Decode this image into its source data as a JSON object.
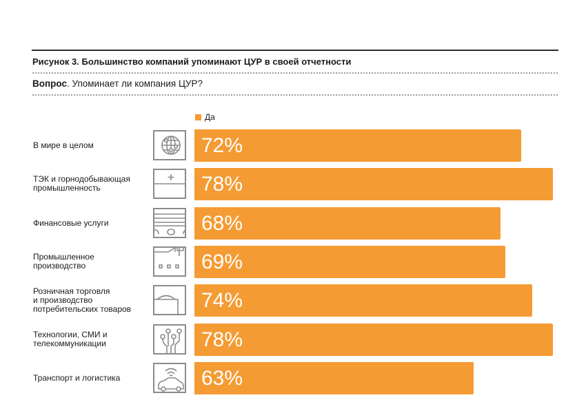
{
  "figure": {
    "title": "Рисунок 3. Большинство компаний упоминают ЦУР в своей отчетности",
    "question_bold": "Вопрос",
    "question_text": ". Упоминает ли компания ЦУР?"
  },
  "chart_data": {
    "type": "bar",
    "orientation": "horizontal",
    "title": "Рисунок 3. Большинство компаний упоминают ЦУР в своей отчетности",
    "xlabel": "",
    "ylabel": "",
    "legend": [
      {
        "name": "Да",
        "color": "#f59b33"
      }
    ],
    "legend_position": "top-left",
    "grid": false,
    "categories": [
      "В мире в целом",
      "ТЭК и горнодобывающая промышленность",
      "Финансовые услуги",
      "Промышленное производство",
      "Розничная торговля и производство потребительских товаров",
      "Технологии, СМИ и телекоммуникации",
      "Транспорт и логистика"
    ],
    "series": [
      {
        "name": "Да",
        "values": [
          72,
          78,
          68,
          69,
          74,
          78,
          63
        ]
      }
    ],
    "value_labels": [
      "72%",
      "78%",
      "68%",
      "69%",
      "74%",
      "78%",
      "63%"
    ],
    "icons": [
      "globe-icon",
      "briefcase-icon",
      "money-stack-icon",
      "factory-icon",
      "shopping-bag-icon",
      "circuit-icon",
      "connected-car-icon"
    ],
    "label_lines": [
      [
        "В мире в целом"
      ],
      [
        "ТЭК и горнодобывающая",
        "промышленность"
      ],
      [
        "Финансовые услуги"
      ],
      [
        "Промышленное",
        "производство"
      ],
      [
        "Розничная торговля",
        "и производство",
        "потребительских товаров"
      ],
      [
        "Технологии, СМИ и",
        "телекоммуникации"
      ],
      [
        "Транспорт и логистика"
      ]
    ]
  }
}
